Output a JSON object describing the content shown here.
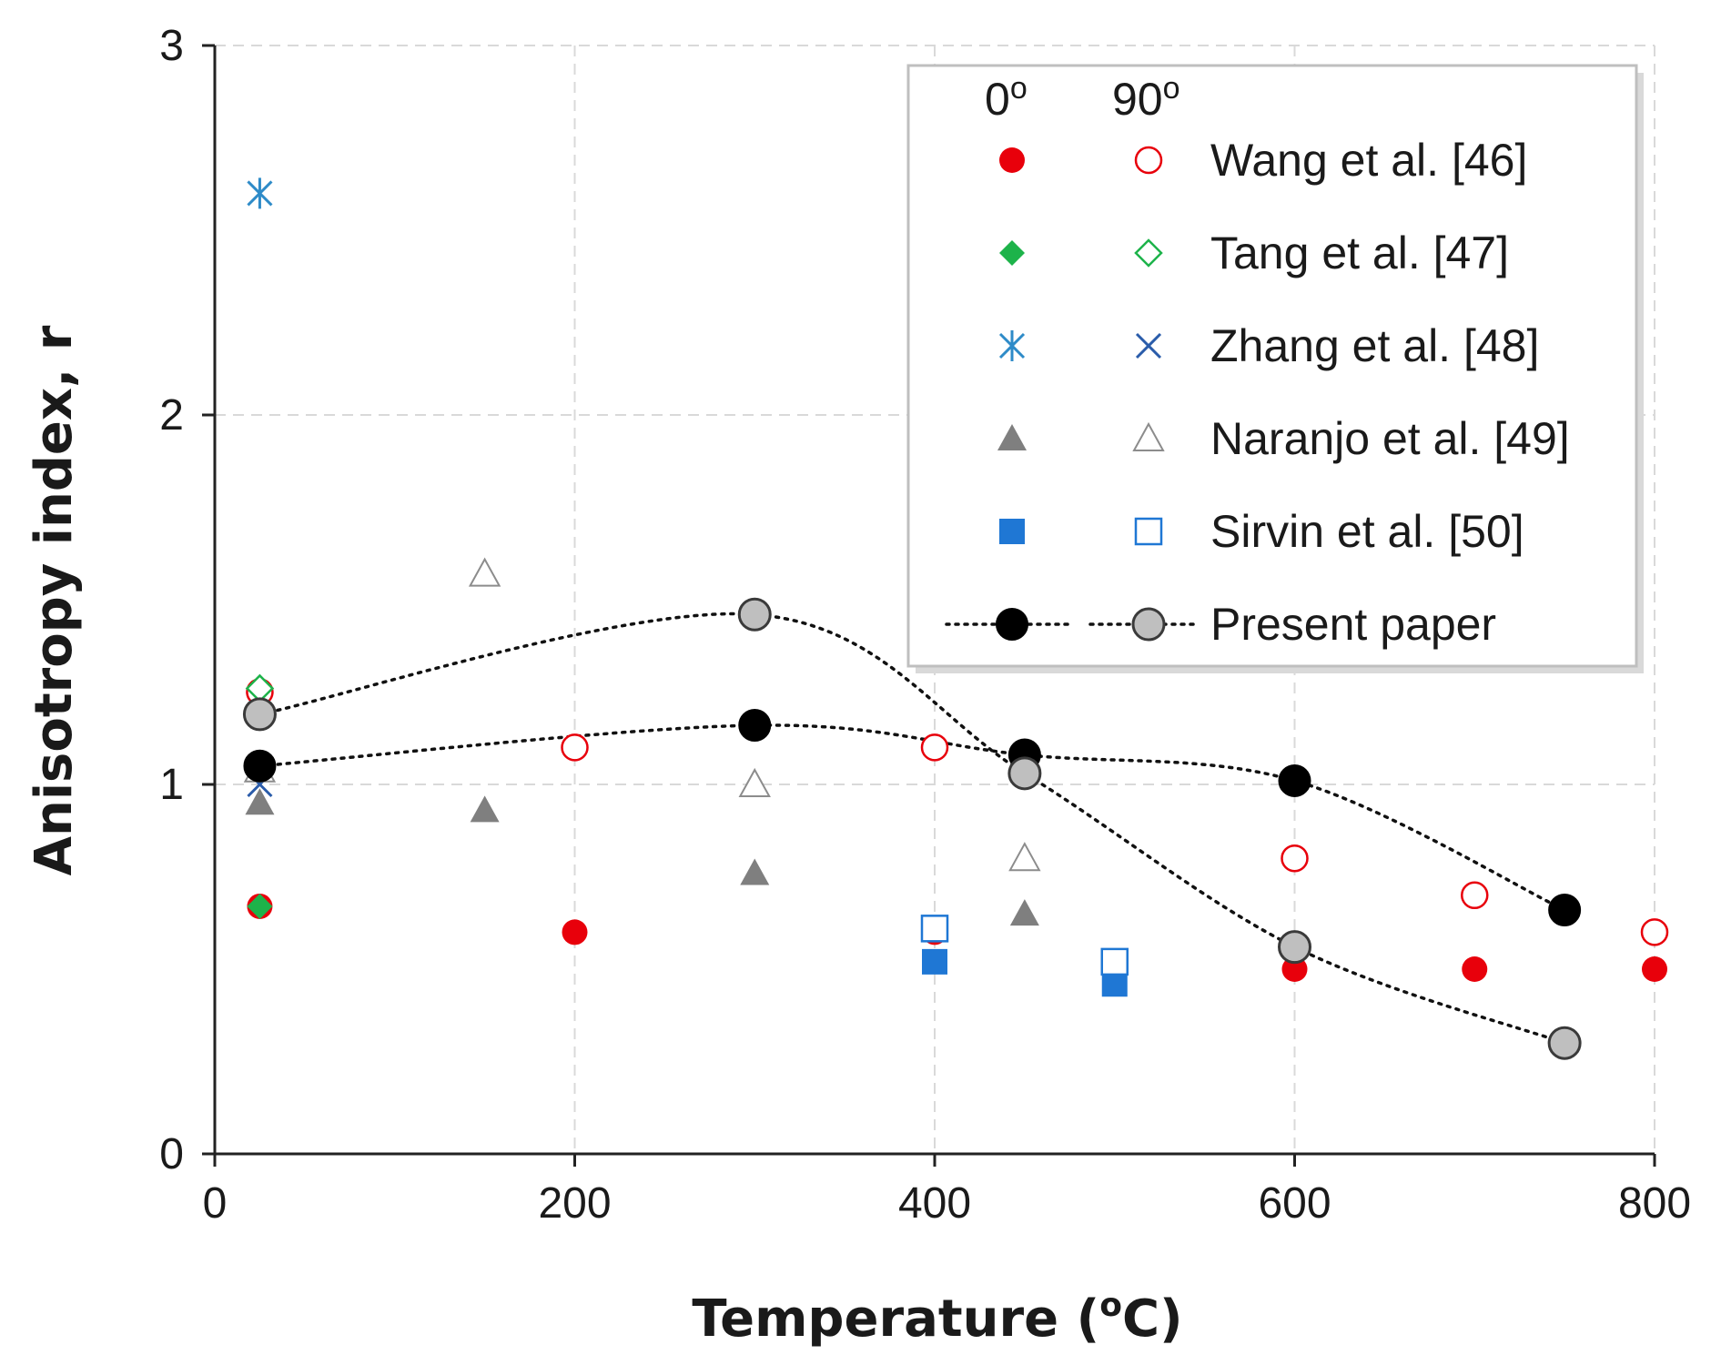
{
  "chart_data": {
    "type": "scatter",
    "xlabel_main": "Temperature (",
    "xlabel_sup": "o",
    "xlabel_tail": "C)",
    "ylabel": "Anisotropy index, r",
    "xlim": [
      0,
      800
    ],
    "ylim": [
      0,
      3
    ],
    "xticks": [
      0,
      200,
      400,
      600,
      800
    ],
    "yticks": [
      0,
      1,
      2,
      3
    ],
    "grid": true,
    "legend_position": "top-right",
    "legend_headers": {
      "h0": "0",
      "h90": "90",
      "sup": "o"
    },
    "series": [
      {
        "name": "Wang et al. [46]",
        "orientation": "0",
        "marker": "circle-filled",
        "color": "#e8000b",
        "x": [
          25,
          200,
          400,
          600,
          700,
          800
        ],
        "y": [
          0.67,
          0.6,
          0.6,
          0.5,
          0.5,
          0.5
        ]
      },
      {
        "name": "Wang et al. [46]",
        "orientation": "90",
        "marker": "circle-open",
        "color": "#e8000b",
        "x": [
          25,
          200,
          400,
          600,
          700,
          800
        ],
        "y": [
          1.25,
          1.1,
          1.1,
          0.8,
          0.7,
          0.6
        ]
      },
      {
        "name": "Tang et al. [47]",
        "orientation": "0",
        "marker": "diamond-filled",
        "color": "#1db34a",
        "x": [
          25
        ],
        "y": [
          0.67
        ]
      },
      {
        "name": "Tang et al. [47]",
        "orientation": "90",
        "marker": "diamond-open",
        "color": "#1db34a",
        "x": [
          25
        ],
        "y": [
          1.26
        ]
      },
      {
        "name": "Zhang et al. [48]",
        "orientation": "0",
        "marker": "asterisk",
        "color": "#2e8bc8",
        "x": [
          25
        ],
        "y": [
          2.6
        ]
      },
      {
        "name": "Zhang et al. [48]",
        "orientation": "90",
        "marker": "cross",
        "color": "#2a5caa",
        "x": [
          25
        ],
        "y": [
          1.0
        ]
      },
      {
        "name": "Naranjo et al. [49]",
        "orientation": "0",
        "marker": "triangle-filled",
        "color": "#7f7f7f",
        "x": [
          25,
          150,
          300,
          450
        ],
        "y": [
          0.95,
          0.93,
          0.76,
          0.65
        ]
      },
      {
        "name": "Naranjo et al. [49]",
        "orientation": "90",
        "marker": "triangle-open",
        "color": "#8c8c8c",
        "x": [
          25,
          150,
          300,
          450
        ],
        "y": [
          1.04,
          1.57,
          1.0,
          0.8
        ]
      },
      {
        "name": "Sirvin et al. [50]",
        "orientation": "0",
        "marker": "square-filled",
        "color": "#1f77d4",
        "x": [
          400,
          500
        ],
        "y": [
          0.52,
          0.46
        ]
      },
      {
        "name": "Sirvin et al. [50]",
        "orientation": "90",
        "marker": "square-open",
        "color": "#1f77d4",
        "x": [
          400,
          500
        ],
        "y": [
          0.61,
          0.52
        ]
      },
      {
        "name": "Present paper",
        "orientation": "0",
        "marker": "circle-black",
        "color": "#000000",
        "x": [
          25,
          300,
          450,
          600,
          750
        ],
        "y": [
          1.05,
          1.16,
          1.08,
          1.01,
          0.66
        ]
      },
      {
        "name": "Present paper",
        "orientation": "90",
        "marker": "circle-gray",
        "color": "#bfbfbf",
        "x": [
          25,
          300,
          450,
          600,
          750
        ],
        "y": [
          1.19,
          1.46,
          1.03,
          0.56,
          0.3
        ]
      }
    ],
    "legend": [
      {
        "label": "Wang et al. [46]",
        "m0": "circle-filled",
        "c0": "#e8000b",
        "m90": "circle-open",
        "c90": "#e8000b"
      },
      {
        "label": "Tang et al. [47]",
        "m0": "diamond-filled",
        "c0": "#1db34a",
        "m90": "diamond-open",
        "c90": "#1db34a"
      },
      {
        "label": "Zhang et al. [48]",
        "m0": "asterisk",
        "c0": "#2e8bc8",
        "m90": "cross",
        "c90": "#2a5caa"
      },
      {
        "label": "Naranjo et al. [49]",
        "m0": "triangle-filled",
        "c0": "#7f7f7f",
        "m90": "triangle-open",
        "c90": "#8c8c8c"
      },
      {
        "label": "Sirvin et al. [50]",
        "m0": "square-filled",
        "c0": "#1f77d4",
        "m90": "square-open",
        "c90": "#1f77d4"
      },
      {
        "label": "Present paper",
        "m0": "circle-black",
        "c0": "#000000",
        "m90": "circle-gray",
        "c90": "#bfbfbf",
        "dotted": true
      }
    ]
  }
}
